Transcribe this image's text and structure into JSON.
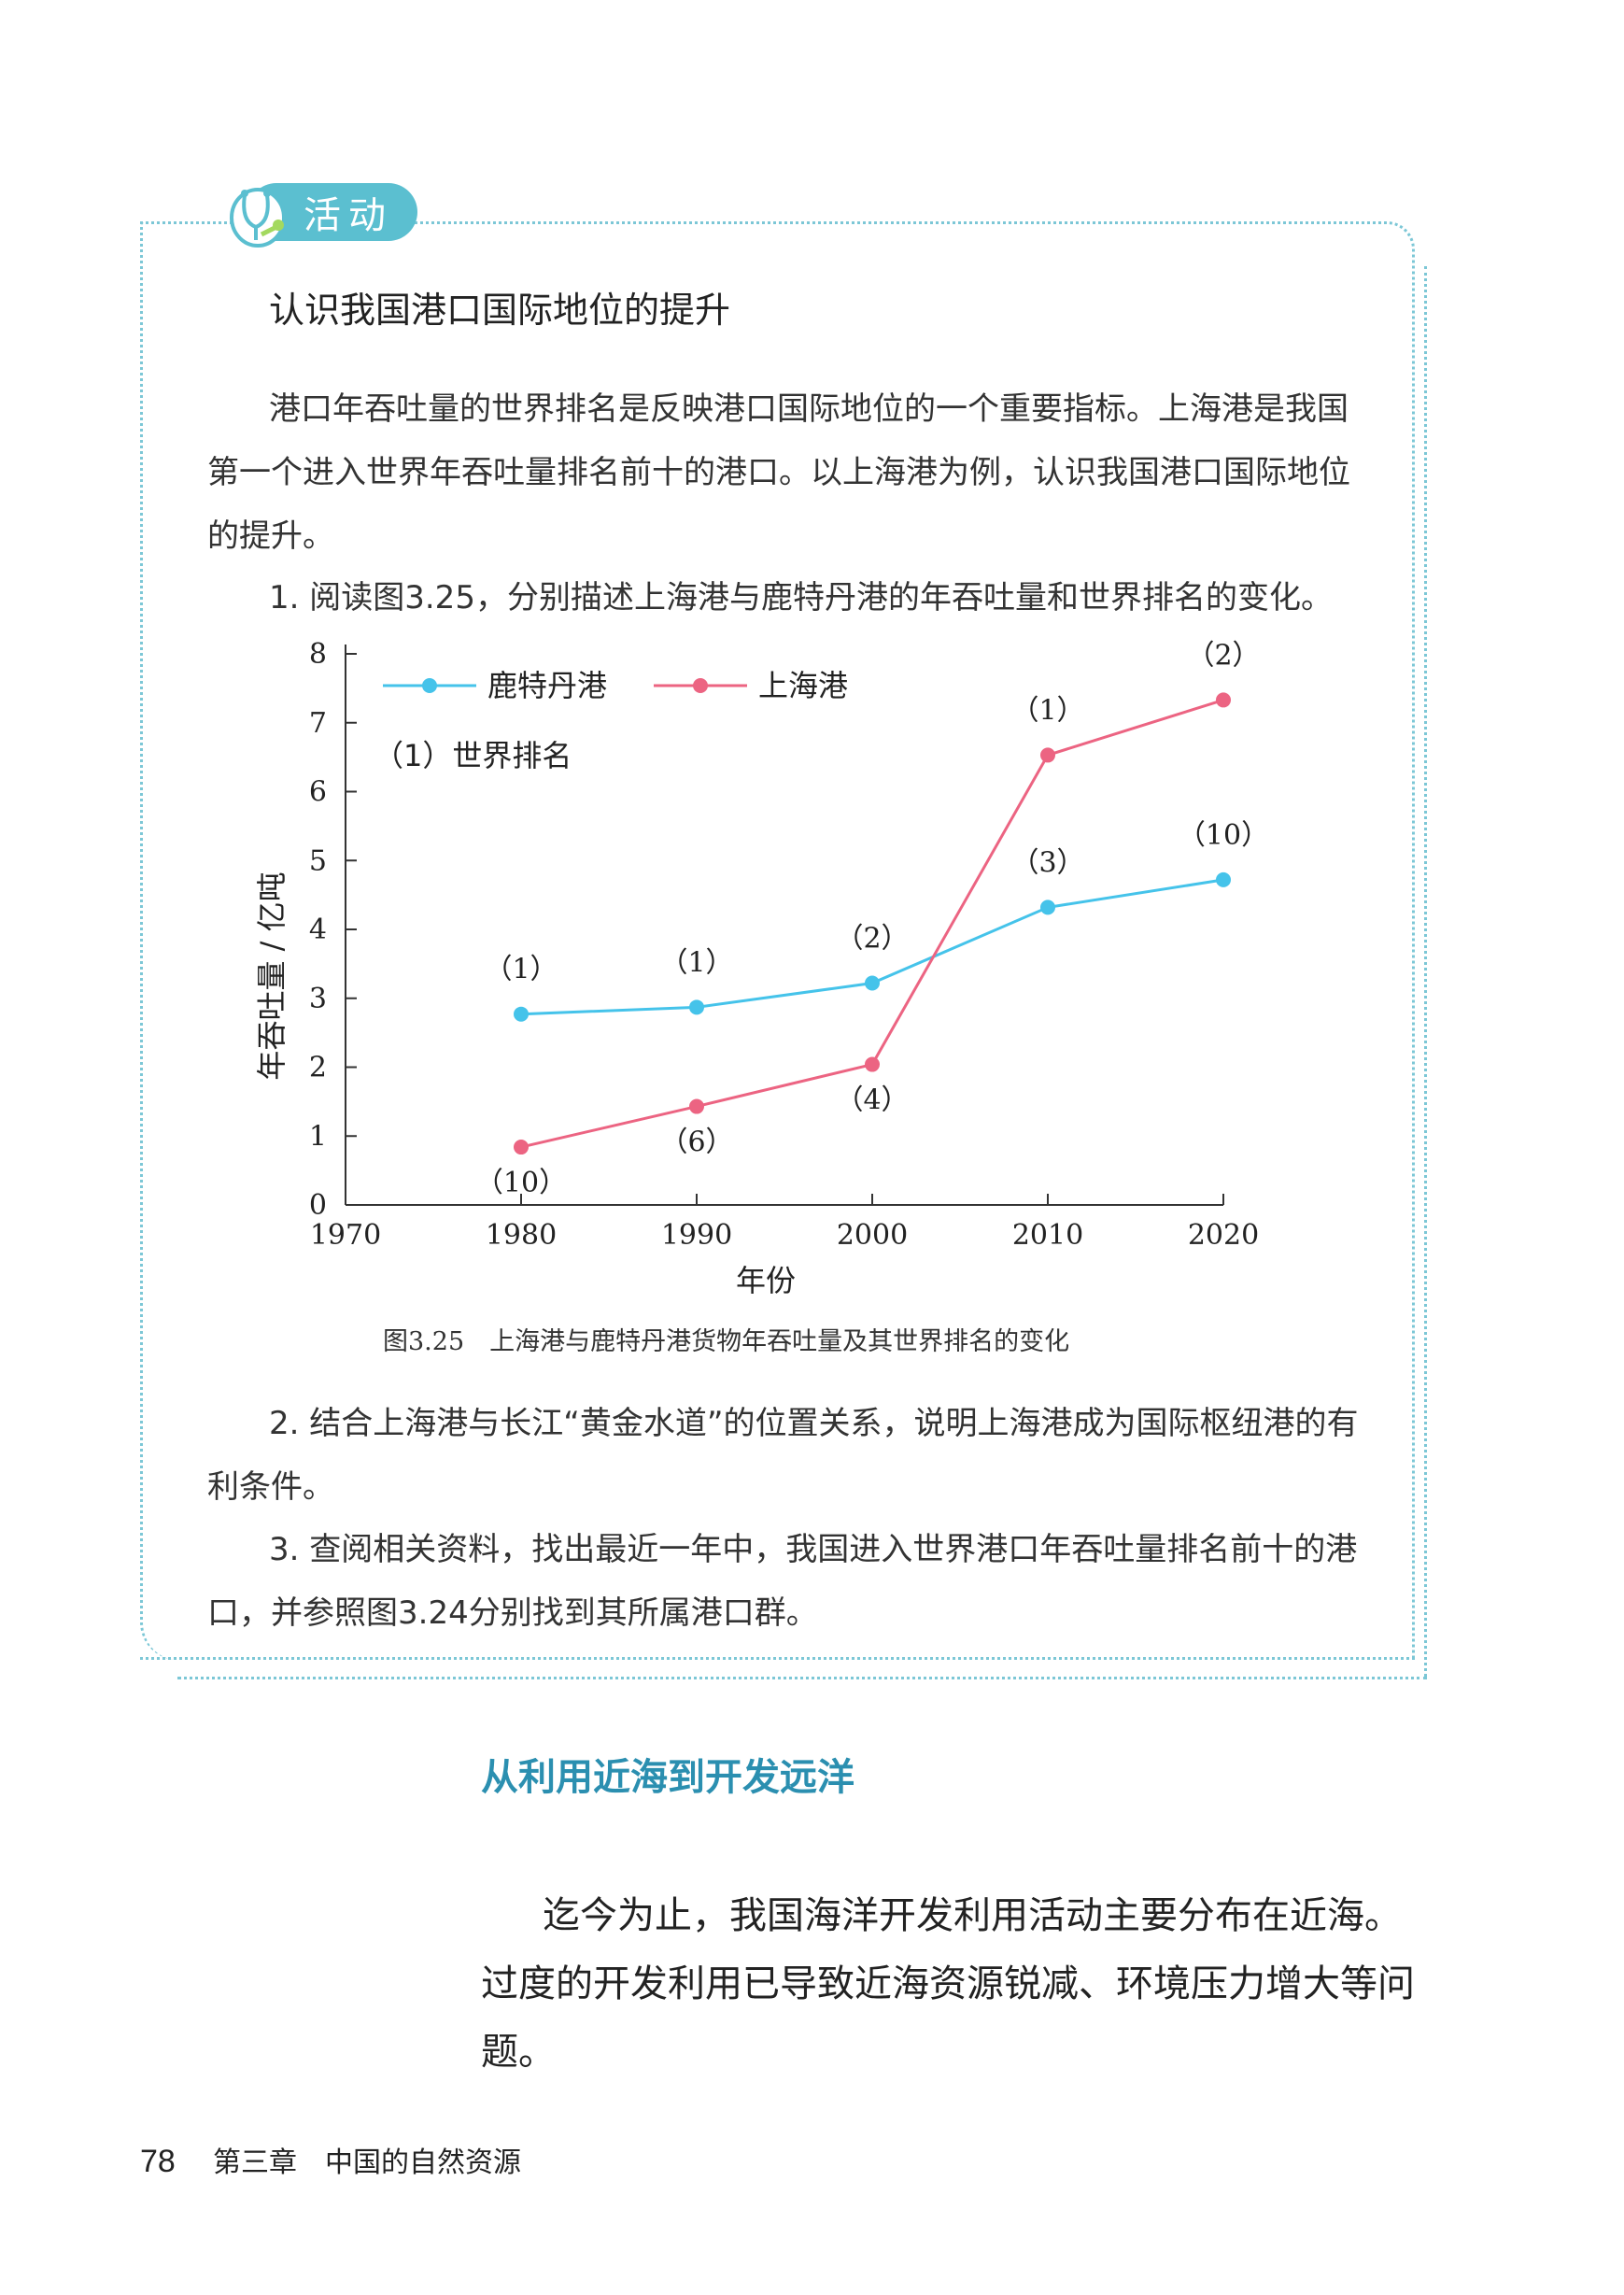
{
  "activity": {
    "badge": "活动",
    "title": "认识我国港口国际地位的提升",
    "intro": "港口年吞吐量的世界排名是反映港口国际地位的一个重要指标。上海港是我国第一个进入世界年吞吐量排名前十的港口。以上海港为例，认识我国港口国际地位的提升。",
    "question1": "1. 阅读图3.25，分别描述上海港与鹿特丹港的年吞吐量和世界排名的变化。",
    "question2": "2. 结合上海港与长江“黄金水道”的位置关系，说明上海港成为国际枢纽港的有利条件。",
    "question3": "3. 查阅相关资料，找出最近一年中，我国进入世界港口年吞吐量排名前十的港口，并参照图3.24分别找到其所属港口群。",
    "colors": {
      "accent": "#5bbfd0",
      "border": "#7cc7d6"
    }
  },
  "figure": {
    "caption": "图3.25　上海港与鹿特丹港货物年吞吐量及其世界排名的变化"
  },
  "chart_data": {
    "type": "line",
    "xlabel": "年份",
    "ylabel": "年吞吐量 / 亿吨",
    "x_ticks": [
      "1970",
      "1980",
      "1990",
      "2000",
      "2010",
      "2020"
    ],
    "y_ticks": [
      "0",
      "1",
      "2",
      "3",
      "4",
      "5",
      "6",
      "7",
      "8"
    ],
    "xlim": [
      1970,
      2020
    ],
    "ylim": [
      0,
      8
    ],
    "legend_placement": "top-left",
    "annotation": "（1）世界排名",
    "series": [
      {
        "name": "鹿特丹港",
        "color": "#45c3ea",
        "x": [
          1980,
          1990,
          2000,
          2010,
          2020
        ],
        "y": [
          2.77,
          2.87,
          3.22,
          4.32,
          4.72
        ],
        "rank_labels": [
          "（1）",
          "（1）",
          "（2）",
          "（3）",
          "（10）"
        ]
      },
      {
        "name": "上海港",
        "color": "#ec6482",
        "x": [
          1980,
          1990,
          2000,
          2010,
          2020
        ],
        "y": [
          0.84,
          1.43,
          2.04,
          6.53,
          7.33
        ],
        "rank_labels": [
          "（10）",
          "（6）",
          "（4）",
          "（1）",
          "（2）"
        ]
      }
    ]
  },
  "section": {
    "heading": "从利用近海到开发远洋",
    "paragraph": "迄今为止，我国海洋开发利用活动主要分布在近海。过度的开发利用已导致近海资源锐减、环境压力增大等问题。"
  },
  "footer": {
    "page_number": "78",
    "chapter": "第三章　中国的自然资源"
  }
}
